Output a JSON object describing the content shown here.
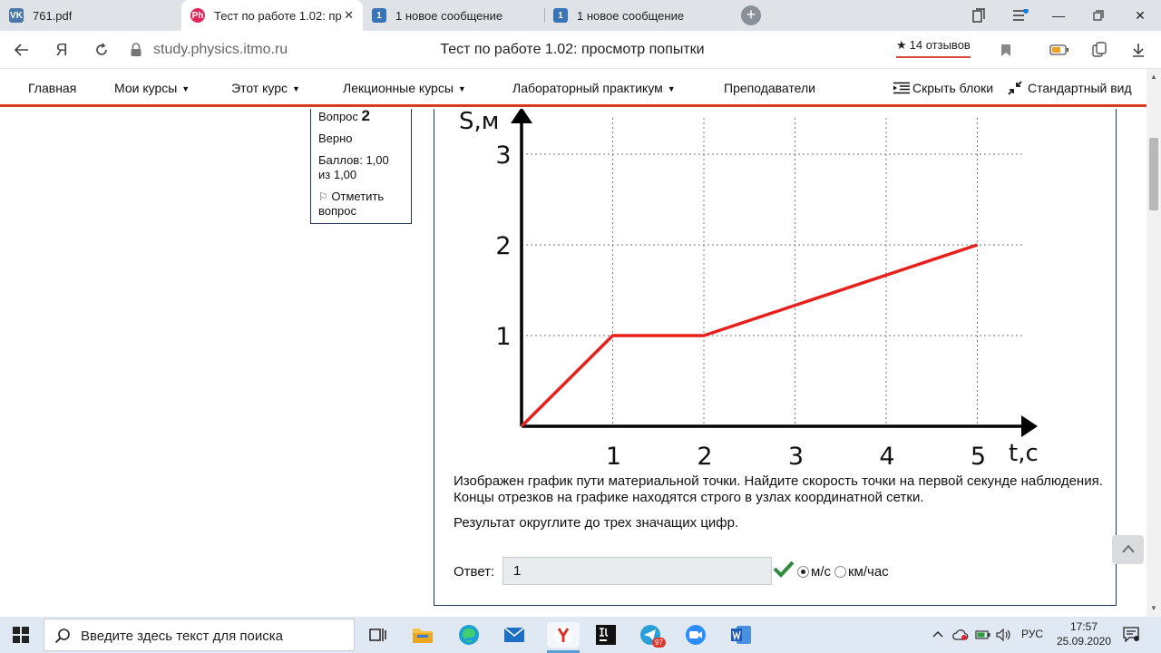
{
  "browser": {
    "tabs": [
      {
        "label": "761.pdf",
        "icon": "vk-icon",
        "color": "#4a76a8",
        "glyph": "VK"
      },
      {
        "label": "Тест по работе 1.02: пр",
        "icon": "ph-icon",
        "color": "#e0245e",
        "glyph": "Ph"
      },
      {
        "label": "1 новое сообщение",
        "icon": "message-icon",
        "color": "#3a74b8",
        "glyph": "1"
      },
      {
        "label": "1 новое сообщение",
        "icon": "message-icon",
        "color": "#3a74b8",
        "glyph": "1"
      }
    ],
    "domain": "study.physics.itmo.ru",
    "page_title": "Тест по работе 1.02: просмотр попытки",
    "reviews": "14 отзывов"
  },
  "site_nav": {
    "items": [
      "Главная",
      "Мои курсы",
      "Этот курс",
      "Лекционные курсы",
      "Лабораторный практикум",
      "Преподаватели"
    ],
    "hide_blocks": "Скрыть блоки",
    "standard_view": "Стандартный вид"
  },
  "question_info": {
    "question_label": "Вопрос",
    "question_number": "2",
    "status": "Верно",
    "score": "Баллов: 1,00 из 1,00",
    "flag": "Отметить вопрос"
  },
  "chart_data": {
    "type": "line",
    "xlabel": "t,с",
    "ylabel": "S,м",
    "x_ticks": [
      "1",
      "2",
      "3",
      "4",
      "5"
    ],
    "y_ticks": [
      "1",
      "2",
      "3"
    ],
    "xlim": [
      0,
      5.5
    ],
    "ylim": [
      0,
      3
    ],
    "grid": true,
    "series": [
      {
        "x": [
          0,
          1,
          2,
          5
        ],
        "y": [
          0,
          1,
          1,
          2
        ],
        "color": "#e8201c"
      }
    ]
  },
  "question": {
    "text1": "Изображен график пути материальной точки. Найдите скорость точки на первой секунде наблюдения.  Концы отрезков на графике находятся строго в узлах координатной сетки.",
    "text2": "Результат округлите до трех значащих цифр.",
    "answer_label": "Ответ:",
    "answer_value": "1",
    "unit_1": "м/с",
    "unit_2": "км/час"
  },
  "taskbar": {
    "search_placeholder": "Введите здесь текст для поиска",
    "lang": "РУС",
    "time": "17:57",
    "date": "25.09.2020",
    "telegram_badge": "97"
  }
}
